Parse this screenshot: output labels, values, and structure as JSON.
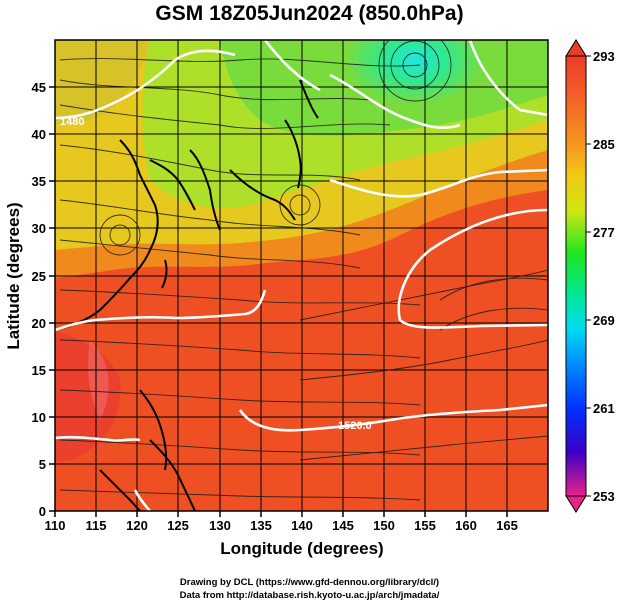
{
  "title": "GSM 18Z05Jun2024 (850.0hPa)",
  "map": {
    "xlabel": "Longitude (degrees)",
    "ylabel": "Latitude  (degrees)",
    "xlim": [
      110,
      170
    ],
    "ylim": [
      0,
      50
    ],
    "xticks": [
      110,
      115,
      120,
      125,
      130,
      135,
      140,
      145,
      150,
      155,
      160,
      165
    ],
    "yticks": [
      0,
      5,
      10,
      15,
      20,
      25,
      30,
      35,
      40,
      45
    ],
    "contour_labels": [
      "1480",
      "1520.0"
    ],
    "colorbar": {
      "ticks": [
        "293",
        "285",
        "277",
        "269",
        "261",
        "253"
      ],
      "range": [
        253,
        293
      ],
      "colors": [
        "#e8248a",
        "#b400c8",
        "#3a00c8",
        "#0032ff",
        "#008cff",
        "#00dcf0",
        "#00e6a0",
        "#1ee61e",
        "#8ce614",
        "#d2e614",
        "#f0c814",
        "#f5961e",
        "#f56428",
        "#eb3c28"
      ]
    },
    "field_colors": {
      "warm": "#ee4422",
      "mid": "#f08a1c",
      "cool": "#e0d41e",
      "cold": "#8ee23a",
      "coldest": "#2ee6c8"
    }
  },
  "credits": {
    "line1": "Drawing by DCL (https://www.gfd-dennou.org/library/dcl/)",
    "line2": "Data from http://database.rish.kyoto-u.ac.jp/arch/jmadata/"
  }
}
